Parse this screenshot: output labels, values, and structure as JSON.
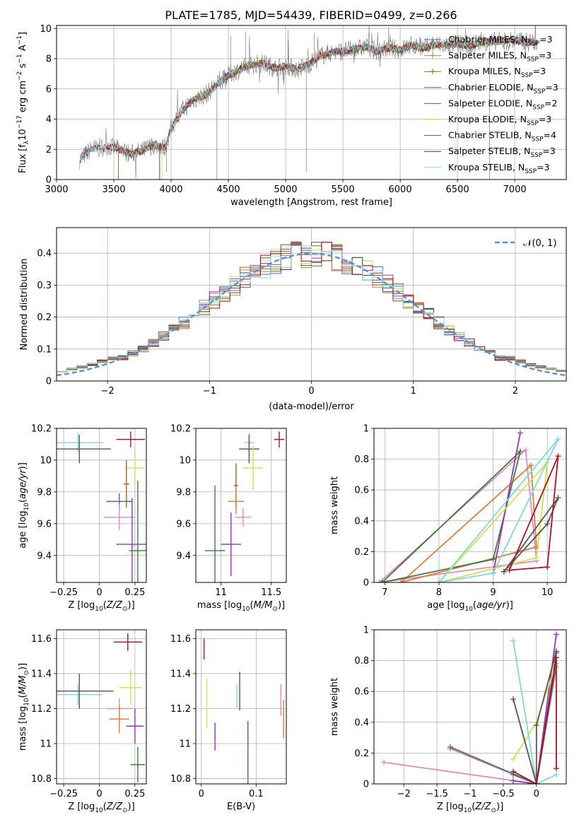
{
  "figure": {
    "title": "PLATE=1785, MJD=54439, FIBERID=0499, z=0.266"
  },
  "colors": {
    "Chabrier MILES": "#4c72b0",
    "Salpeter MILES": "#e07b39",
    "Kroupa MILES": "#9a6a1e",
    "Chabrier ELODIE": "#3f7a3f",
    "Salpeter ELODIE": "#9b30c0",
    "Kroupa ELODIE": "#d6e04a",
    "Chabrier STELIB": "#555555",
    "Salpeter STELIB": "#b01020",
    "Kroupa STELIB": "#80d8e0",
    "pink": "#e088c0",
    "grid": "#b0b0b0",
    "normal": "#5b8fd4"
  },
  "chart_data": [
    {
      "id": "spectrum",
      "type": "line",
      "xlabel": "wavelength [Angstrom, rest frame]",
      "ylabel": "Flux [fλ10⁻¹⁷ erg cm⁻² s⁻¹ A⁻¹]",
      "xlim": [
        3000,
        7450
      ],
      "ylim": [
        0,
        10.2
      ],
      "xticks": [
        3000,
        3500,
        4000,
        4500,
        5000,
        5500,
        6000,
        6500,
        7000
      ],
      "yticks": [
        0,
        2,
        4,
        6,
        8,
        10
      ],
      "grid": true,
      "legend_position": "upper-right",
      "legend": [
        {
          "name": "Chabrier MILES, N",
          "sub": "SSP",
          "suffix": "=3",
          "marker": "+"
        },
        {
          "name": "Salpeter MILES, N",
          "sub": "SSP",
          "suffix": "=3",
          "marker": "+"
        },
        {
          "name": "Kroupa MILES, N",
          "sub": "SSP",
          "suffix": "=3",
          "marker": "+"
        },
        {
          "name": "Chabrier ELODIE, N",
          "sub": "SSP",
          "suffix": "=3",
          "marker": ""
        },
        {
          "name": "Salpeter ELODIE, N",
          "sub": "SSP",
          "suffix": "=2",
          "marker": ""
        },
        {
          "name": "Kroupa ELODIE, N",
          "sub": "SSP",
          "suffix": "=3",
          "marker": ""
        },
        {
          "name": "Chabrier STELIB, N",
          "sub": "SSP",
          "suffix": "=4",
          "marker": ""
        },
        {
          "name": "Salpeter STELIB, N",
          "sub": "SSP",
          "suffix": "=3",
          "marker": ""
        },
        {
          "name": "Kroupa STELIB, N",
          "sub": "SSP",
          "suffix": "=3",
          "marker": ""
        }
      ],
      "continuum": [
        [
          3200,
          1.3
        ],
        [
          3300,
          2.0
        ],
        [
          3450,
          2.2
        ],
        [
          3550,
          2.0
        ],
        [
          3650,
          1.7
        ],
        [
          3750,
          1.9
        ],
        [
          3850,
          2.3
        ],
        [
          3950,
          2.1
        ],
        [
          4000,
          3.4
        ],
        [
          4100,
          4.6
        ],
        [
          4200,
          5.3
        ],
        [
          4300,
          5.6
        ],
        [
          4400,
          6.3
        ],
        [
          4500,
          6.9
        ],
        [
          4600,
          7.3
        ],
        [
          4700,
          7.6
        ],
        [
          4800,
          7.7
        ],
        [
          4900,
          7.4
        ],
        [
          5000,
          7.5
        ],
        [
          5100,
          7.3
        ],
        [
          5200,
          7.6
        ],
        [
          5300,
          8.2
        ],
        [
          5400,
          8.4
        ],
        [
          5500,
          8.5
        ],
        [
          5600,
          8.6
        ],
        [
          5700,
          8.8
        ],
        [
          5800,
          8.5
        ],
        [
          5900,
          8.7
        ],
        [
          6000,
          8.6
        ],
        [
          6100,
          8.9
        ],
        [
          6200,
          8.7
        ],
        [
          6300,
          8.9
        ],
        [
          6400,
          8.9
        ],
        [
          6500,
          9.0
        ],
        [
          6600,
          8.8
        ],
        [
          6700,
          9.1
        ],
        [
          6800,
          9.1
        ],
        [
          6900,
          9.2
        ],
        [
          7000,
          9.2
        ],
        [
          7100,
          9.1
        ],
        [
          7200,
          9.1
        ]
      ],
      "model_starts": [
        {
          "series": "Chabrier MILES",
          "start": 3540
        },
        {
          "series": "Salpeter MILES",
          "start": 3540
        },
        {
          "series": "Kroupa MILES",
          "start": 3540
        },
        {
          "series": "Chabrier ELODIE",
          "start": 3900
        },
        {
          "series": "Salpeter ELODIE",
          "start": 3900
        },
        {
          "series": "Kroupa ELODIE",
          "start": 3920
        },
        {
          "series": "Chabrier STELIB",
          "start": 3200
        },
        {
          "series": "Salpeter STELIB",
          "start": 3200
        },
        {
          "series": "Kroupa STELIB",
          "start": 3200
        }
      ],
      "spikes": [
        {
          "x": 4400,
          "y": 0.0
        },
        {
          "x": 3960,
          "y": 0.5
        },
        {
          "x": 5180,
          "y": 0.5
        },
        {
          "x": 4650,
          "y": 9.8
        },
        {
          "x": 4520,
          "y": 9.5
        },
        {
          "x": 5020,
          "y": 9.9
        },
        {
          "x": 5250,
          "y": 9.7
        },
        {
          "x": 5900,
          "y": 10.1
        },
        {
          "x": 6780,
          "y": 0.0
        }
      ]
    },
    {
      "id": "residuals",
      "type": "histogram",
      "xlabel": "(data-model)/error",
      "ylabel": "Normed distribution",
      "xlim": [
        -2.5,
        2.5
      ],
      "ylim": [
        0,
        0.48
      ],
      "xticks": [
        -2,
        -1,
        0,
        1,
        2
      ],
      "yticks": [
        0.0,
        0.1,
        0.2,
        0.3,
        0.4
      ],
      "grid": true,
      "legend_position": "upper-right",
      "legend_label": "𝒩(0, 1)",
      "bin_width": 0.1,
      "curve": {
        "mean": 0,
        "sigma": 1
      }
    },
    {
      "id": "age-vs-Z",
      "type": "errorbar",
      "xlabel": "Z [log10(Z/Z⊙)]",
      "ylabel": "age  [log10(age/yr)]",
      "xlim": [
        -0.3,
        0.33
      ],
      "ylim": [
        9.23,
        10.2
      ],
      "xticks": [
        -0.25,
        0.0,
        0.25
      ],
      "yticks": [
        9.4,
        9.6,
        9.8,
        10.0,
        10.2
      ],
      "grid": true,
      "points": [
        {
          "series": "Kroupa STELIB",
          "x": -0.15,
          "xerr": 0.18,
          "y": 10.11,
          "yerr": 0.06
        },
        {
          "series": "Chabrier STELIB",
          "x": -0.14,
          "xerr": 0.22,
          "y": 10.07,
          "yerr": 0.09
        },
        {
          "series": "Salpeter STELIB",
          "x": 0.22,
          "xerr": 0.1,
          "y": 10.13,
          "yerr": 0.05
        },
        {
          "series": "Kroupa ELODIE",
          "x": 0.25,
          "xerr": 0.07,
          "y": 9.95,
          "yerr": 0.1
        },
        {
          "series": "Kroupa MILES",
          "x": 0.19,
          "xerr": 0.02,
          "y": 9.85,
          "yerr": 0.15
        },
        {
          "series": "Salpeter MILES",
          "x": 0.14,
          "xerr": 0.09,
          "y": 9.74,
          "yerr": 0.05
        },
        {
          "series": "Chabrier MILES",
          "x": 0.14,
          "xerr": 0.09,
          "y": 9.74,
          "yerr": 0.05
        },
        {
          "series": "pink",
          "x": 0.14,
          "xerr": 0.11,
          "y": 9.64,
          "yerr": 0.08
        },
        {
          "series": "Salpeter ELODIE",
          "x": 0.23,
          "xerr": 0.11,
          "y": 9.47,
          "yerr": 0.29
        },
        {
          "series": "Chabrier ELODIE",
          "x": 0.27,
          "xerr": 0.06,
          "y": 9.43,
          "yerr": 0.44
        }
      ]
    },
    {
      "id": "age-vs-mass",
      "type": "errorbar",
      "xlabel": "mass [log10(M/M⊙)]",
      "ylabel": "",
      "xlim": [
        10.75,
        11.65
      ],
      "ylim": [
        9.23,
        10.2
      ],
      "xticks": [
        11.0,
        11.5
      ],
      "yticks": [
        9.4,
        9.6,
        9.8,
        10.0,
        10.2
      ],
      "grid": true,
      "points": [
        {
          "series": "Kroupa STELIB",
          "x": 11.28,
          "xerr": 0.05,
          "y": 10.11,
          "yerr": 0.06
        },
        {
          "series": "Chabrier STELIB",
          "x": 11.28,
          "xerr": 0.1,
          "y": 10.07,
          "yerr": 0.09
        },
        {
          "series": "Salpeter STELIB",
          "x": 11.58,
          "xerr": 0.05,
          "y": 10.13,
          "yerr": 0.05
        },
        {
          "series": "Kroupa ELODIE",
          "x": 11.32,
          "xerr": 0.1,
          "y": 9.95,
          "yerr": 0.14
        },
        {
          "series": "Kroupa MILES",
          "x": 11.15,
          "xerr": 0.02,
          "y": 9.84,
          "yerr": 0.14
        },
        {
          "series": "Salpeter MILES",
          "x": 11.15,
          "xerr": 0.08,
          "y": 9.74,
          "yerr": 0.08
        },
        {
          "series": "pink",
          "x": 11.22,
          "xerr": 0.08,
          "y": 9.64,
          "yerr": 0.06
        },
        {
          "series": "Salpeter ELODIE",
          "x": 11.1,
          "xerr": 0.1,
          "y": 9.47,
          "yerr": 0.2
        },
        {
          "series": "Chabrier ELODIE",
          "x": 10.94,
          "xerr": 0.1,
          "y": 9.43,
          "yerr": 0.41
        }
      ]
    },
    {
      "id": "weight-vs-age",
      "type": "line",
      "xlabel": "age  [log10(age/yr)]",
      "ylabel": "mass weight",
      "xlim": [
        6.8,
        10.35
      ],
      "ylim": [
        0,
        1.0
      ],
      "xticks": [
        7,
        8,
        9,
        10
      ],
      "yticks": [
        0.0,
        0.2,
        0.4,
        0.6,
        0.8,
        1.0
      ],
      "grid": true,
      "series": [
        {
          "name": "pink",
          "x": [
            6.9,
            9.6,
            9.8,
            6.9
          ],
          "y": [
            0.0,
            0.86,
            0.14,
            0.0
          ]
        },
        {
          "name": "Salpeter MILES",
          "x": [
            7.3,
            9.7,
            9.8,
            7.3
          ],
          "y": [
            0.0,
            0.76,
            0.23,
            0.0
          ]
        },
        {
          "name": "Chabrier ELODIE",
          "x": [
            6.95,
            9.0,
            9.5,
            6.95
          ],
          "y": [
            0.0,
            0.15,
            0.85,
            0.0
          ]
        },
        {
          "name": "Salpeter ELODIE",
          "x": [
            9.0,
            9.5,
            9.0
          ],
          "y": [
            0.06,
            0.97,
            0.06
          ]
        },
        {
          "name": "Kroupa ELODIE",
          "x": [
            8.0,
            9.8,
            10.0,
            8.0
          ],
          "y": [
            0.0,
            0.16,
            0.78,
            0.0
          ]
        },
        {
          "name": "Kroupa STELIB",
          "x": [
            8.0,
            9.0,
            10.2,
            8.0
          ],
          "y": [
            0.0,
            0.06,
            0.93,
            0.0
          ]
        },
        {
          "name": "Chabrier STELIB",
          "x": [
            9.2,
            10.0,
            10.2,
            9.2
          ],
          "y": [
            0.07,
            0.38,
            0.55,
            0.07
          ]
        },
        {
          "name": "Salpeter STELIB",
          "x": [
            9.3,
            10.0,
            10.2,
            9.3
          ],
          "y": [
            0.08,
            0.1,
            0.82,
            0.08
          ]
        }
      ]
    },
    {
      "id": "mass-vs-Z",
      "type": "errorbar",
      "xlabel": "Z [log10(Z/Z⊙)]",
      "ylabel": "mass [log10(M/M⊙)]",
      "xlim": [
        -0.3,
        0.33
      ],
      "ylim": [
        10.77,
        11.65
      ],
      "xticks": [
        -0.25,
        0.0,
        0.25
      ],
      "yticks": [
        10.8,
        11.0,
        11.2,
        11.4,
        11.6
      ],
      "grid": true,
      "points": [
        {
          "series": "Salpeter STELIB",
          "x": 0.2,
          "xerr": 0.1,
          "y": 11.58,
          "yerr": 0.05
        },
        {
          "series": "Kroupa ELODIE",
          "x": 0.22,
          "xerr": 0.08,
          "y": 11.32,
          "yerr": 0.1
        },
        {
          "series": "Kroupa STELIB",
          "x": -0.15,
          "xerr": 0.17,
          "y": 11.28,
          "yerr": 0.06
        },
        {
          "series": "Chabrier STELIB",
          "x": -0.14,
          "xerr": 0.24,
          "y": 11.3,
          "yerr": 0.1
        },
        {
          "series": "pink",
          "x": 0.14,
          "xerr": 0.09,
          "y": 11.2,
          "yerr": 0.06
        },
        {
          "series": "Salpeter MILES",
          "x": 0.14,
          "xerr": 0.07,
          "y": 11.14,
          "yerr": 0.08
        },
        {
          "series": "Salpeter ELODIE",
          "x": 0.25,
          "xerr": 0.06,
          "y": 11.1,
          "yerr": 0.1
        },
        {
          "series": "Chabrier ELODIE",
          "x": 0.27,
          "xerr": 0.05,
          "y": 10.88,
          "yerr": 0.1
        }
      ]
    },
    {
      "id": "mass-vs-EBV",
      "type": "errorbar",
      "xlabel": "E(B-V)",
      "ylabel": "",
      "xlim": [
        -0.01,
        0.155
      ],
      "ylim": [
        10.77,
        11.65
      ],
      "xticks": [
        0.0,
        0.1
      ],
      "yticks": [
        10.8,
        11.0,
        11.2,
        11.4,
        11.6
      ],
      "grid": true,
      "points": [
        {
          "series": "Salpeter STELIB",
          "x": 0.005,
          "xerr": 0,
          "y": 11.54,
          "yerr": 0.06
        },
        {
          "series": "Kroupa ELODIE",
          "x": 0.01,
          "xerr": 0,
          "y": 11.23,
          "yerr": 0.14
        },
        {
          "series": "Salpeter ELODIE",
          "x": 0.025,
          "xerr": 0,
          "y": 11.04,
          "yerr": 0.08
        },
        {
          "series": "Kroupa STELIB",
          "x": 0.065,
          "xerr": 0,
          "y": 11.27,
          "yerr": 0.07
        },
        {
          "series": "Chabrier STELIB",
          "x": 0.07,
          "xerr": 0,
          "y": 11.3,
          "yerr": 0.11
        },
        {
          "series": "Chabrier ELODIE",
          "x": 0.085,
          "xerr": 0,
          "y": 10.9,
          "yerr": 0.23
        },
        {
          "series": "pink",
          "x": 0.145,
          "xerr": 0,
          "y": 11.25,
          "yerr": 0.09
        },
        {
          "series": "Salpeter MILES",
          "x": 0.15,
          "xerr": 0,
          "y": 11.14,
          "yerr": 0.11
        }
      ]
    },
    {
      "id": "weight-vs-Z",
      "type": "line",
      "xlabel": "Z [log10(Z/Z⊙)]",
      "ylabel": "mass weight",
      "xlim": [
        -2.45,
        0.45
      ],
      "ylim": [
        0,
        1.0
      ],
      "xticks": [
        -2.0,
        -1.5,
        -1.0,
        -0.5,
        0.0
      ],
      "yticks": [
        0.0,
        0.2,
        0.4,
        0.6,
        0.8,
        1.0
      ],
      "grid": true,
      "series": [
        {
          "name": "pink",
          "x": [
            -2.3,
            0.0,
            0.3
          ],
          "y": [
            0.14,
            0.0,
            0.86
          ]
        },
        {
          "name": "Salpeter MILES",
          "x": [
            -1.3,
            0.0,
            0.3
          ],
          "y": [
            0.23,
            0.0,
            0.76
          ]
        },
        {
          "name": "Chabrier MILES",
          "x": [
            -1.3,
            0.0,
            0.3
          ],
          "y": [
            0.24,
            0.0,
            0.78
          ]
        },
        {
          "name": "Salpeter ELODIE",
          "x": [
            -0.35,
            0.0,
            0.3
          ],
          "y": [
            0.02,
            0.0,
            0.97
          ]
        },
        {
          "name": "Chabrier ELODIE",
          "x": [
            -0.35,
            0.0,
            0.3
          ],
          "y": [
            0.06,
            0.0,
            0.85
          ]
        },
        {
          "name": "Kroupa ELODIE",
          "x": [
            -0.35,
            0.0,
            0.3
          ],
          "y": [
            0.16,
            0.4,
            0.78
          ]
        },
        {
          "name": "Kroupa STELIB",
          "x": [
            -0.35,
            0.0,
            0.3
          ],
          "y": [
            0.93,
            0.0,
            0.06
          ]
        },
        {
          "name": "Chabrier STELIB",
          "x": [
            -0.35,
            0.0,
            0.0,
            0.3
          ],
          "y": [
            0.55,
            0.0,
            0.38,
            0.86
          ]
        },
        {
          "name": "Salpeter STELIB",
          "x": [
            -0.35,
            0.0,
            0.3,
            0.3
          ],
          "y": [
            0.08,
            0.0,
            0.82,
            0.1
          ]
        }
      ]
    }
  ]
}
